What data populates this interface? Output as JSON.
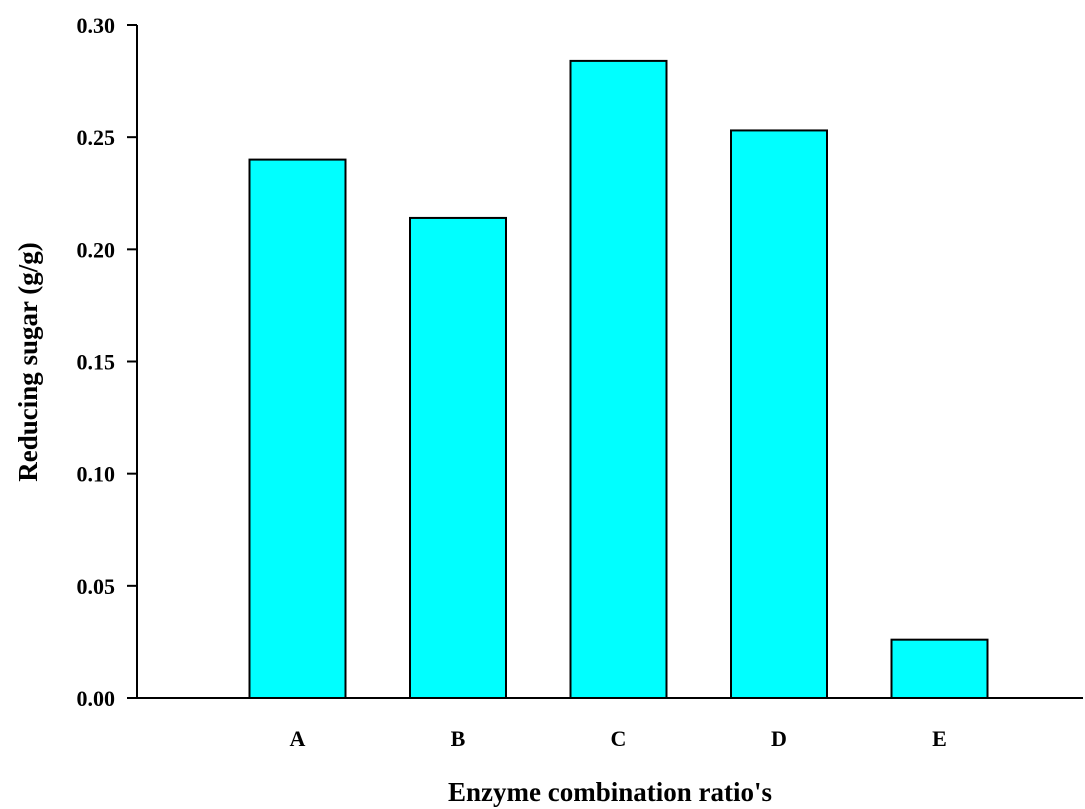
{
  "chart_data": {
    "type": "bar",
    "title": "",
    "xlabel": "Enzyme combination ratio's",
    "ylabel": "Reducing sugar (g/g)",
    "categories": [
      "A",
      "B",
      "C",
      "D",
      "E"
    ],
    "values": [
      0.24,
      0.214,
      0.284,
      0.253,
      0.026
    ],
    "ylim": [
      0,
      0.3
    ],
    "yticks": [
      0.0,
      0.05,
      0.1,
      0.15,
      0.2,
      0.25,
      0.3
    ],
    "ytick_labels": [
      "0.00",
      "0.05",
      "0.10",
      "0.15",
      "0.20",
      "0.25",
      "0.30"
    ],
    "grid": false,
    "legend": "none",
    "colors": {
      "bar_fill": "#00FFFF",
      "bar_stroke": "#000000",
      "axis": "#000000"
    }
  }
}
